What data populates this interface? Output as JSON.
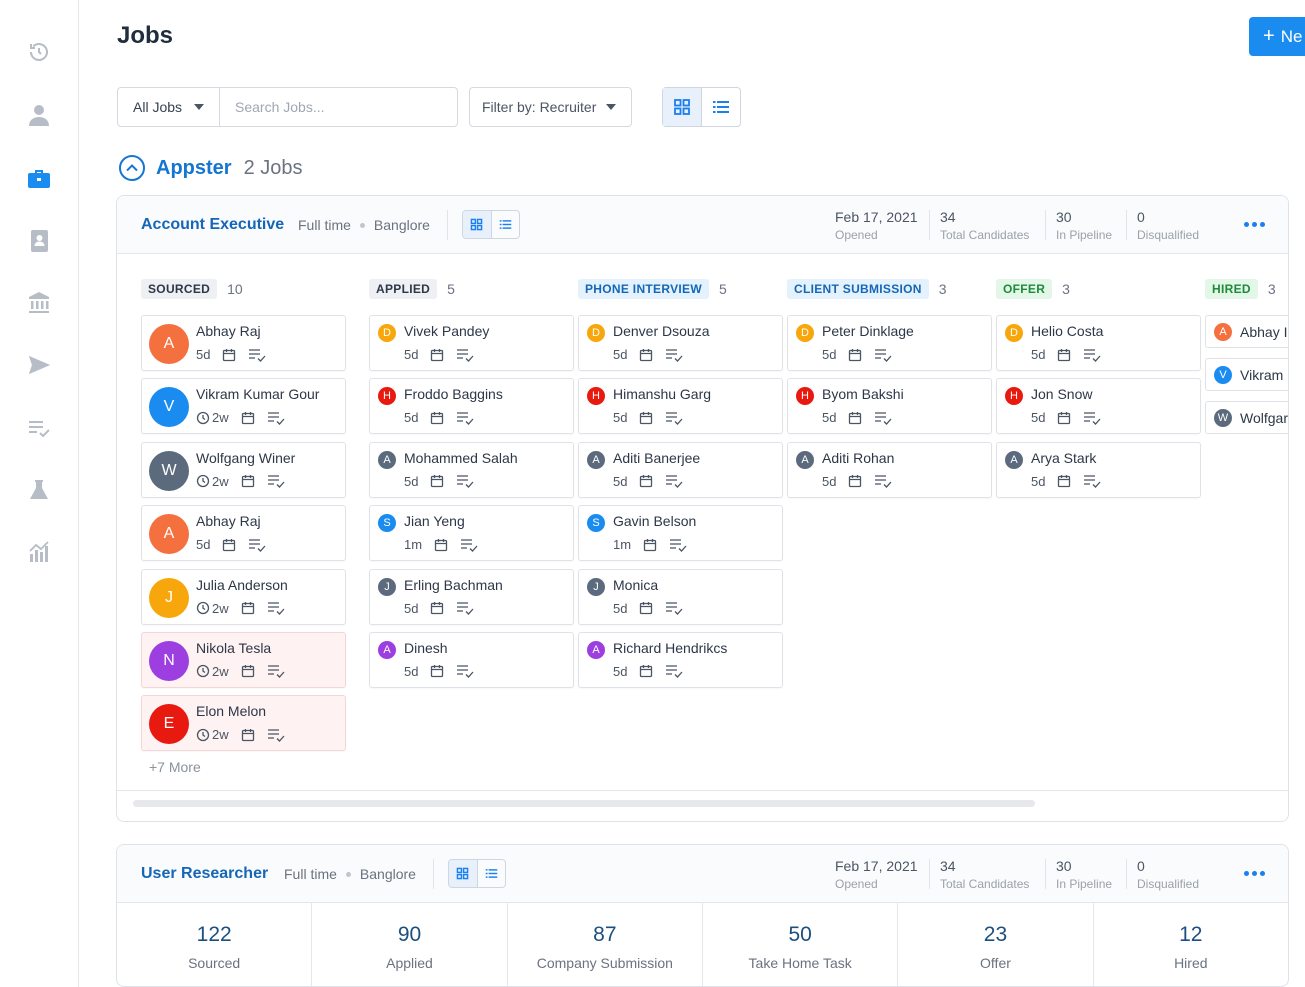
{
  "page": {
    "title": "Jobs",
    "new_label": "Ne"
  },
  "sidebar": {
    "items": [
      {
        "name": "history-icon",
        "active": false
      },
      {
        "name": "user-icon",
        "active": false
      },
      {
        "name": "briefcase-icon",
        "active": true
      },
      {
        "name": "address-book-icon",
        "active": false
      },
      {
        "name": "bank-icon",
        "active": false
      },
      {
        "name": "send-icon",
        "active": false
      },
      {
        "name": "checklist-icon",
        "active": false
      },
      {
        "name": "flask-icon",
        "active": false
      },
      {
        "name": "analytics-icon",
        "active": false
      }
    ]
  },
  "filters": {
    "all_jobs": "All Jobs",
    "search_placeholder": "Search Jobs...",
    "filter_label": "Filter by: Recruiter"
  },
  "company": {
    "name": "Appster",
    "count": "2 Jobs"
  },
  "job1": {
    "title": "Account Executive",
    "type": "Full time",
    "location": "Banglore",
    "opened_date": "Feb 17, 2021",
    "opened_label": "Opened",
    "total": "34",
    "total_label": "Total Candidates",
    "pipeline": "30",
    "pipeline_label": "In Pipeline",
    "disq": "0",
    "disq_label": "Disqualified",
    "more": "+7 More",
    "columns": [
      {
        "label": "SOURCED",
        "count": "10",
        "chip_bg": "#eef0f3",
        "chip_fg": "#2d3748",
        "cards": [
          {
            "name": "Abhay Raj",
            "initial": "A",
            "color": "#f4703f",
            "time": "5d",
            "clock": false,
            "highlight": false
          },
          {
            "name": "Vikram Kumar Gour",
            "initial": "V",
            "color": "#1a8cf0",
            "time": "2w",
            "clock": true,
            "highlight": false
          },
          {
            "name": "Wolfgang Winer",
            "initial": "W",
            "color": "#5b6b7d",
            "time": "2w",
            "clock": true,
            "highlight": false
          },
          {
            "name": "Abhay Raj",
            "initial": "A",
            "color": "#f4703f",
            "time": "5d",
            "clock": false,
            "highlight": false
          },
          {
            "name": "Julia Anderson",
            "initial": "J",
            "color": "#f7a70b",
            "time": "2w",
            "clock": true,
            "highlight": false
          },
          {
            "name": "Nikola Tesla",
            "initial": "N",
            "color": "#9d3fe0",
            "time": "2w",
            "clock": true,
            "highlight": true
          },
          {
            "name": "Elon Melon",
            "initial": "E",
            "color": "#e8190f",
            "time": "2w",
            "clock": true,
            "highlight": true
          }
        ]
      },
      {
        "label": "APPLIED",
        "count": "5",
        "chip_bg": "#eef0f3",
        "chip_fg": "#2d3748",
        "cards": [
          {
            "name": "Vivek Pandey",
            "initial": "D",
            "color": "#f7a70b",
            "time": "5d"
          },
          {
            "name": "Froddo Baggins",
            "initial": "H",
            "color": "#e8190f",
            "time": "5d"
          },
          {
            "name": "Mohammed Salah",
            "initial": "A",
            "color": "#5b6b7d",
            "time": "5d"
          },
          {
            "name": "Jian Yeng",
            "initial": "S",
            "color": "#1a8cf0",
            "time": "1m"
          },
          {
            "name": "Erling Bachman",
            "initial": "J",
            "color": "#5b6b7d",
            "time": "5d"
          },
          {
            "name": "Dinesh",
            "initial": "A",
            "color": "#9d3fe0",
            "time": "5d"
          }
        ]
      },
      {
        "label": "PHONE INTERVIEW",
        "count": "5",
        "chip_bg": "#e4f2fd",
        "chip_fg": "#1566b7",
        "cards": [
          {
            "name": "Denver Dsouza",
            "initial": "D",
            "color": "#f7a70b",
            "time": "5d"
          },
          {
            "name": "Himanshu Garg",
            "initial": "H",
            "color": "#e8190f",
            "time": "5d"
          },
          {
            "name": "Aditi Banerjee",
            "initial": "A",
            "color": "#5b6b7d",
            "time": "5d"
          },
          {
            "name": "Gavin Belson",
            "initial": "S",
            "color": "#1a8cf0",
            "time": "1m"
          },
          {
            "name": "Monica",
            "initial": "J",
            "color": "#5b6b7d",
            "time": "5d"
          },
          {
            "name": "Richard Hendrikcs",
            "initial": "A",
            "color": "#9d3fe0",
            "time": "5d"
          }
        ]
      },
      {
        "label": "CLIENT SUBMISSION",
        "count": "3",
        "chip_bg": "#e4f2fd",
        "chip_fg": "#1566b7",
        "cards": [
          {
            "name": "Peter Dinklage",
            "initial": "D",
            "color": "#f7a70b",
            "time": "5d"
          },
          {
            "name": "Byom Bakshi",
            "initial": "H",
            "color": "#e8190f",
            "time": "5d"
          },
          {
            "name": "Aditi Rohan",
            "initial": "A",
            "color": "#5b6b7d",
            "time": "5d"
          }
        ]
      },
      {
        "label": "OFFER",
        "count": "3",
        "chip_bg": "#e2f7e7",
        "chip_fg": "#1f8a3a",
        "cards": [
          {
            "name": "Helio Costa",
            "initial": "D",
            "color": "#f7a70b",
            "time": "5d"
          },
          {
            "name": "Jon Snow",
            "initial": "H",
            "color": "#e8190f",
            "time": "5d"
          },
          {
            "name": "Arya Stark",
            "initial": "A",
            "color": "#5b6b7d",
            "time": "5d"
          }
        ]
      },
      {
        "label": "HIRED",
        "count": "3",
        "chip_bg": "#e2f7e7",
        "chip_fg": "#1f8a3a",
        "cards": [
          {
            "name": "Abhay I",
            "initial": "A",
            "color": "#f4703f"
          },
          {
            "name": "Vikram",
            "initial": "V",
            "color": "#1a8cf0"
          },
          {
            "name": "Wolfgar",
            "initial": "W",
            "color": "#5b6b7d"
          }
        ]
      }
    ]
  },
  "job2": {
    "title": "User Researcher",
    "type": "Full time",
    "location": "Banglore",
    "opened_date": "Feb 17, 2021",
    "opened_label": "Opened",
    "total": "34",
    "total_label": "Total Candidates",
    "pipeline": "30",
    "pipeline_label": "In Pipeline",
    "disq": "0",
    "disq_label": "Disqualified",
    "summary": [
      {
        "num": "122",
        "label": "Sourced"
      },
      {
        "num": "90",
        "label": "Applied"
      },
      {
        "num": "87",
        "label": "Company Submission"
      },
      {
        "num": "50",
        "label": "Take Home Task"
      },
      {
        "num": "23",
        "label": "Offer"
      },
      {
        "num": "12",
        "label": "Hired"
      }
    ]
  }
}
